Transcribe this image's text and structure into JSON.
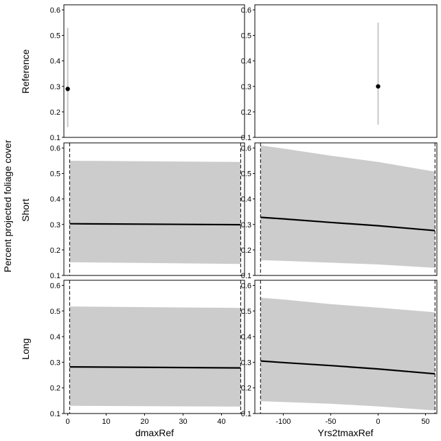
{
  "chart_data": {
    "type": "line",
    "grid": false,
    "ylabel": "Percent projected foliage cover",
    "rows": [
      "Reference",
      "Short",
      "Long"
    ],
    "columns": [
      {
        "xlabel": "dmaxRef",
        "xticks": [
          0,
          10,
          20,
          30,
          40
        ],
        "xlim": [
          -1,
          46
        ],
        "vlines": [
          0.5,
          45
        ]
      },
      {
        "xlabel": "Yrs2tmaxRef",
        "xticks": [
          -100,
          -50,
          0,
          50
        ],
        "xlim": [
          -130,
          62
        ],
        "vlines": [
          -124,
          60
        ]
      }
    ],
    "yticks": [
      0.1,
      0.2,
      0.3,
      0.4,
      0.5,
      0.6
    ],
    "ylim": [
      0.1,
      0.62
    ],
    "panels": [
      {
        "row": "Reference",
        "col": "dmaxRef",
        "kind": "point",
        "x": 0,
        "y": 0.29,
        "lower": 0.14,
        "upper": 0.53
      },
      {
        "row": "Reference",
        "col": "Yrs2tmaxRef",
        "kind": "point",
        "x": 0,
        "y": 0.3,
        "lower": 0.15,
        "upper": 0.55
      },
      {
        "row": "Short",
        "col": "dmaxRef",
        "kind": "ribbon",
        "x": [
          0.5,
          45
        ],
        "y": [
          0.303,
          0.299
        ],
        "lower": [
          0.152,
          0.145
        ],
        "upper": [
          0.55,
          0.545
        ]
      },
      {
        "row": "Short",
        "col": "Yrs2tmaxRef",
        "kind": "ribbon",
        "x": [
          -124,
          -100,
          -50,
          0,
          60
        ],
        "y": [
          0.328,
          0.322,
          0.308,
          0.295,
          0.276
        ],
        "lower": [
          0.16,
          0.157,
          0.15,
          0.143,
          0.13
        ],
        "upper": [
          0.61,
          0.598,
          0.57,
          0.545,
          0.507
        ]
      },
      {
        "row": "Long",
        "col": "dmaxRef",
        "kind": "ribbon",
        "x": [
          0.5,
          45
        ],
        "y": [
          0.282,
          0.278
        ],
        "lower": [
          0.13,
          0.127
        ],
        "upper": [
          0.518,
          0.512
        ]
      },
      {
        "row": "Long",
        "col": "Yrs2tmaxRef",
        "kind": "ribbon",
        "x": [
          -124,
          -100,
          -50,
          0,
          60
        ],
        "y": [
          0.305,
          0.299,
          0.287,
          0.274,
          0.255
        ],
        "lower": [
          0.148,
          0.145,
          0.138,
          0.128,
          0.112
        ],
        "upper": [
          0.552,
          0.545,
          0.527,
          0.513,
          0.495
        ]
      }
    ],
    "colors": {
      "ribbon": "#cccccc",
      "line": "#000000",
      "point": "#000000",
      "errorbar": "#c8c8c8"
    }
  }
}
